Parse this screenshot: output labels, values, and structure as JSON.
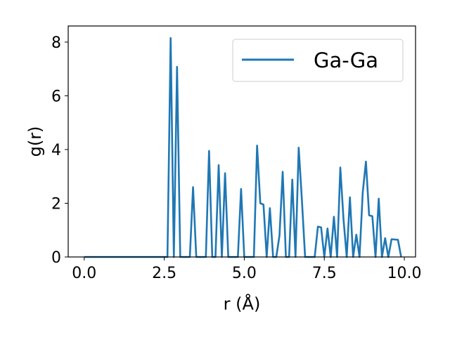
{
  "chart_data": {
    "type": "line",
    "xlabel": "r (Å)",
    "ylabel": "g(r)",
    "xlim": [
      -0.5,
      10.35
    ],
    "ylim": [
      0,
      8.6
    ],
    "xticks": [
      0.0,
      2.5,
      5.0,
      7.5,
      10.0
    ],
    "xtick_labels": [
      "0.0",
      "2.5",
      "5.0",
      "7.5",
      "10.0"
    ],
    "yticks": [
      0,
      2,
      4,
      6,
      8
    ],
    "ytick_labels": [
      "0",
      "2",
      "4",
      "6",
      "8"
    ],
    "grid": false,
    "legend_position": "top-right",
    "series": [
      {
        "name": "Ga-Ga",
        "color": "#1f77b4",
        "x": [
          0.0,
          2.6,
          2.7,
          2.8,
          2.9,
          3.0,
          3.3,
          3.4,
          3.5,
          3.8,
          3.9,
          4.0,
          4.1,
          4.2,
          4.3,
          4.4,
          4.5,
          4.8,
          4.9,
          5.0,
          5.3,
          5.4,
          5.5,
          5.6,
          5.7,
          5.8,
          5.9,
          6.0,
          6.1,
          6.2,
          6.3,
          6.4,
          6.5,
          6.6,
          6.7,
          6.8,
          6.9,
          7.1,
          7.2,
          7.3,
          7.4,
          7.5,
          7.6,
          7.7,
          7.8,
          7.9,
          8.0,
          8.1,
          8.2,
          8.3,
          8.4,
          8.5,
          8.6,
          8.7,
          8.8,
          8.9,
          9.0,
          9.1,
          9.2,
          9.3,
          9.4,
          9.5,
          9.6,
          9.7,
          9.8,
          9.9
        ],
        "y": [
          0.0,
          0.0,
          8.15,
          0.0,
          7.08,
          0.0,
          0.0,
          2.6,
          0.0,
          0.0,
          3.95,
          0.0,
          0.0,
          3.42,
          0.0,
          3.12,
          0.0,
          0.0,
          2.53,
          0.0,
          0.0,
          4.15,
          2.0,
          1.95,
          0.0,
          1.82,
          0.0,
          0.0,
          0.8,
          3.17,
          0.0,
          0.0,
          2.88,
          0.0,
          4.07,
          2.12,
          0.0,
          0.0,
          0.0,
          1.13,
          1.1,
          0.0,
          1.06,
          0.0,
          1.5,
          0.0,
          3.33,
          1.4,
          0.0,
          2.22,
          0.0,
          0.83,
          0.0,
          2.4,
          3.55,
          1.55,
          1.52,
          0.0,
          2.17,
          0.0,
          0.7,
          0.0,
          0.66,
          0.65,
          0.64,
          0.0
        ]
      }
    ]
  }
}
